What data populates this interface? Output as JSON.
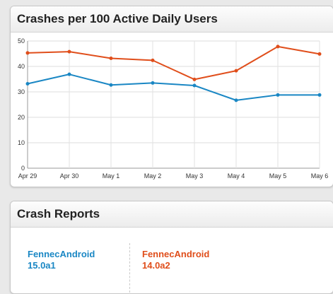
{
  "chart_panel": {
    "title": "Crashes per 100 Active Daily Users"
  },
  "chart_data": {
    "type": "line",
    "title": "Crashes per 100 Active Daily Users",
    "categories": [
      "Apr 29",
      "Apr 30",
      "May 1",
      "May 2",
      "May 3",
      "May 4",
      "May 5",
      "May 6"
    ],
    "ylim": [
      0,
      50
    ],
    "yticks": [
      0,
      10,
      20,
      30,
      40,
      50
    ],
    "grid": true,
    "series": [
      {
        "color": "#e04e1b",
        "values": [
          45.3,
          45.8,
          43.2,
          42.4,
          34.9,
          38.3,
          47.8,
          44.9
        ]
      },
      {
        "color": "#1a87c4",
        "values": [
          33.2,
          36.9,
          32.7,
          33.5,
          32.5,
          26.7,
          28.8,
          28.8
        ]
      }
    ]
  },
  "reports_panel": {
    "title": "Crash Reports",
    "products": [
      {
        "name": "FennecAndroid",
        "version": "15.0a1",
        "color": "#1a87c4"
      },
      {
        "name": "FennecAndroid",
        "version": "14.0a2",
        "color": "#e04e1b"
      }
    ]
  }
}
